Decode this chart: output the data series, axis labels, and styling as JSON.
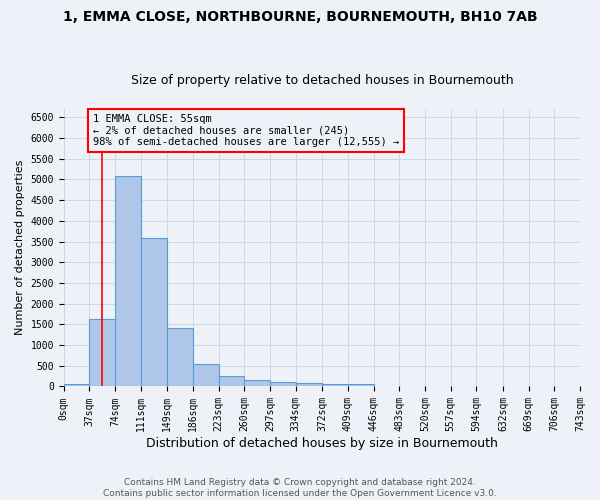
{
  "title1": "1, EMMA CLOSE, NORTHBOURNE, BOURNEMOUTH, BH10 7AB",
  "title2": "Size of property relative to detached houses in Bournemouth",
  "xlabel": "Distribution of detached houses by size in Bournemouth",
  "ylabel": "Number of detached properties",
  "footnote": "Contains HM Land Registry data © Crown copyright and database right 2024.\nContains public sector information licensed under the Open Government Licence v3.0.",
  "bin_edges": [
    0,
    37,
    74,
    111,
    149,
    186,
    223,
    260,
    297,
    334,
    372,
    409,
    446,
    483,
    520,
    557,
    594,
    632,
    669,
    706,
    743
  ],
  "bar_heights": [
    60,
    1620,
    5080,
    3580,
    1400,
    550,
    250,
    150,
    100,
    80,
    55,
    50,
    10,
    5,
    3,
    2,
    1,
    1,
    0,
    0
  ],
  "bar_color": "#aec6e8",
  "bar_edge_color": "#5b9bd5",
  "grid_color": "#c8d4e8",
  "property_line_x": 55,
  "property_line_color": "red",
  "annotation_text": "1 EMMA CLOSE: 55sqm\n← 2% of detached houses are smaller (245)\n98% of semi-detached houses are larger (12,555) →",
  "annotation_box_color": "red",
  "annotation_text_color": "black",
  "ylim": [
    0,
    6700
  ],
  "yticks": [
    0,
    500,
    1000,
    1500,
    2000,
    2500,
    3000,
    3500,
    4000,
    4500,
    5000,
    5500,
    6000,
    6500
  ],
  "title1_fontsize": 10,
  "title2_fontsize": 9,
  "xlabel_fontsize": 9,
  "ylabel_fontsize": 8,
  "tick_fontsize": 7,
  "annotation_fontsize": 7.5,
  "footnote_fontsize": 6.5,
  "bg_color": "#eef2f8"
}
